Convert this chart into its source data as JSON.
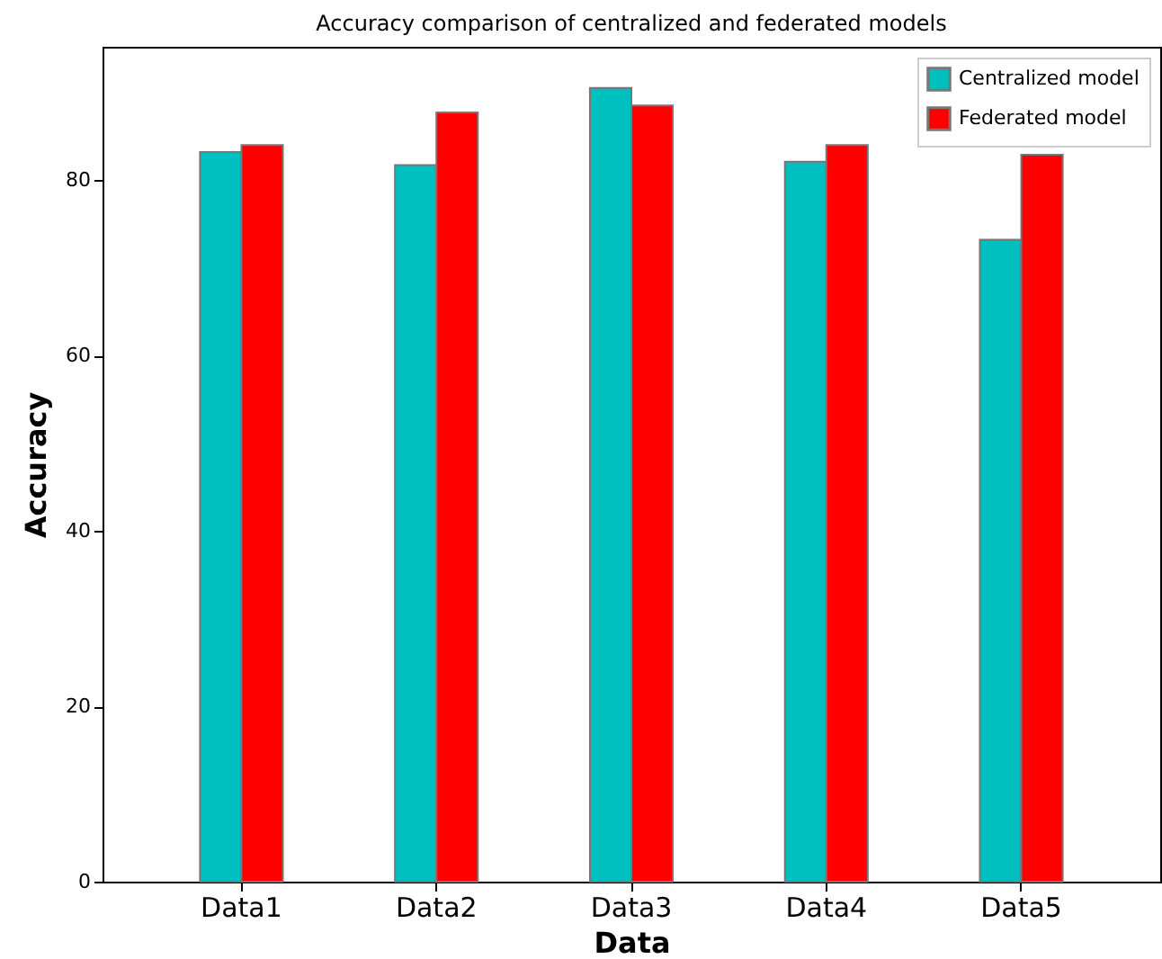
{
  "chart_data": {
    "type": "bar",
    "title": "Accuracy comparison of centralized and federated models",
    "xlabel": "Data",
    "ylabel": "Accuracy",
    "categories": [
      "Data1",
      "Data2",
      "Data3",
      "Data4",
      "Data5"
    ],
    "series": [
      {
        "name": "Centralized model",
        "color": "#00bfbf",
        "values": [
          83.2,
          81.7,
          90.5,
          82.1,
          73.2
        ]
      },
      {
        "name": "Federated model",
        "color": "#ff0000",
        "values": [
          84.0,
          87.7,
          88.5,
          84.0,
          82.9
        ]
      }
    ],
    "ylim": [
      0,
      95.2
    ],
    "yticks": [
      0,
      20,
      40,
      60,
      80
    ],
    "grid": false,
    "legend": "top right"
  }
}
